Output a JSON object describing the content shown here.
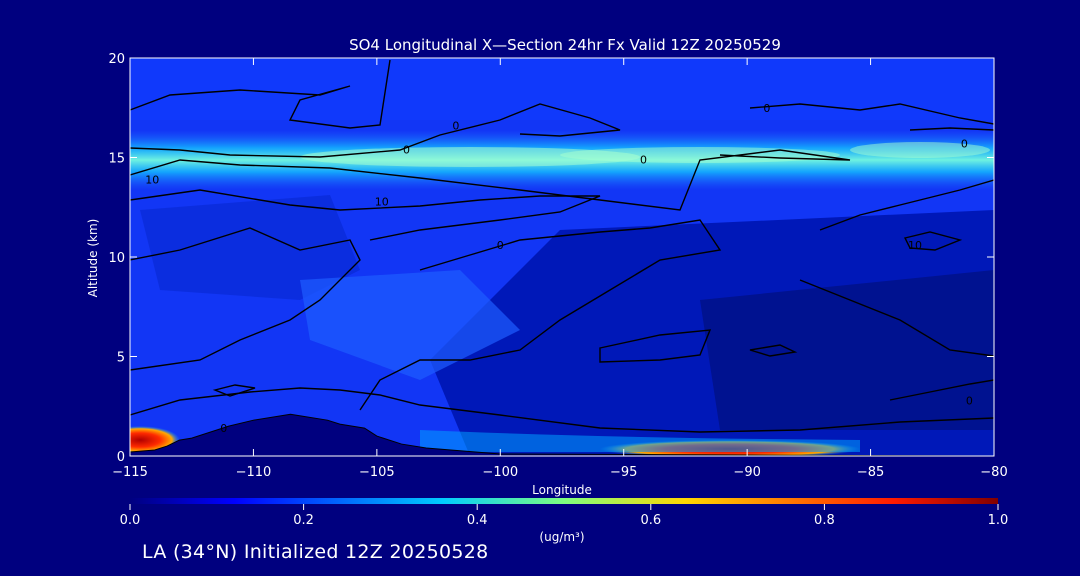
{
  "chart_data": {
    "type": "heatmap",
    "title": "SO4 Longitudinal X—Section 24hr  Fx Valid 12Z 20250529",
    "xlabel": "Longitude",
    "ylabel": "Altitude (km)",
    "xlim": [
      -115,
      -80
    ],
    "ylim": [
      0,
      20
    ],
    "x_ticks": [
      -115,
      -110,
      -105,
      -100,
      -95,
      -90,
      -85,
      -80
    ],
    "x_tick_labels": [
      "−115",
      "−110",
      "−105",
      "−100",
      "−95",
      "−90",
      "−85",
      "−80"
    ],
    "y_ticks": [
      0,
      5,
      10,
      15,
      20
    ],
    "y_tick_labels": [
      "0",
      "5",
      "10",
      "15",
      "20"
    ],
    "colorbar": {
      "min": 0.0,
      "max": 1.0,
      "ticks": [
        0.0,
        0.2,
        0.4,
        0.6,
        0.8,
        1.0
      ],
      "tick_labels": [
        "0.0",
        "0.2",
        "0.4",
        "0.6",
        "0.8",
        "1.0"
      ],
      "units": "(ug/m³)"
    },
    "features": [
      {
        "name": "upper-band",
        "lon": [
          -115,
          -80
        ],
        "alt_center_km": 15.2,
        "value_peak": 0.45
      },
      {
        "name": "surface-maximum-west",
        "lon": -115,
        "alt_km": 0.5,
        "value": 1.0
      },
      {
        "name": "surface-maximum-central",
        "lon": [
          -94,
          -86
        ],
        "alt_km": 0.3,
        "value": 0.95
      }
    ],
    "terrain": {
      "lon": [
        -115,
        -114.5,
        -114,
        -113.5,
        -113,
        -112.5,
        -112,
        -111,
        -110,
        -109,
        -108.5,
        -108,
        -107,
        -106.5,
        -106,
        -105.5,
        -105,
        -104,
        -103,
        -102,
        -101,
        -100,
        -90,
        -80
      ],
      "alt_km": [
        0.2,
        0.25,
        0.3,
        0.5,
        0.8,
        0.9,
        1.1,
        1.5,
        1.8,
        2.0,
        2.1,
        2.0,
        1.8,
        1.6,
        1.5,
        1.4,
        1.0,
        0.6,
        0.4,
        0.3,
        0.2,
        0.1,
        0.05,
        0.0
      ]
    },
    "contour_labels": [
      {
        "text": "0",
        "lon": -111.2,
        "alt": 1.4
      },
      {
        "text": "0",
        "lon": -103.8,
        "alt": 15.4
      },
      {
        "text": "0",
        "lon": -101.8,
        "alt": 16.6
      },
      {
        "text": "0",
        "lon": -94.2,
        "alt": 14.9
      },
      {
        "text": "0",
        "lon": -89.2,
        "alt": 17.5
      },
      {
        "text": "0",
        "lon": -81.2,
        "alt": 15.7
      },
      {
        "text": "0",
        "lon": -81.0,
        "alt": 2.8
      },
      {
        "text": "0",
        "lon": -100.0,
        "alt": 10.6
      },
      {
        "text": "10",
        "lon": -114.1,
        "alt": 13.9
      },
      {
        "text": "10",
        "lon": -104.8,
        "alt": 12.8
      },
      {
        "text": "10",
        "lon": -83.2,
        "alt": 10.6
      }
    ]
  },
  "footer": {
    "text": "LA (34°N) Initialized 12Z 20250528"
  }
}
